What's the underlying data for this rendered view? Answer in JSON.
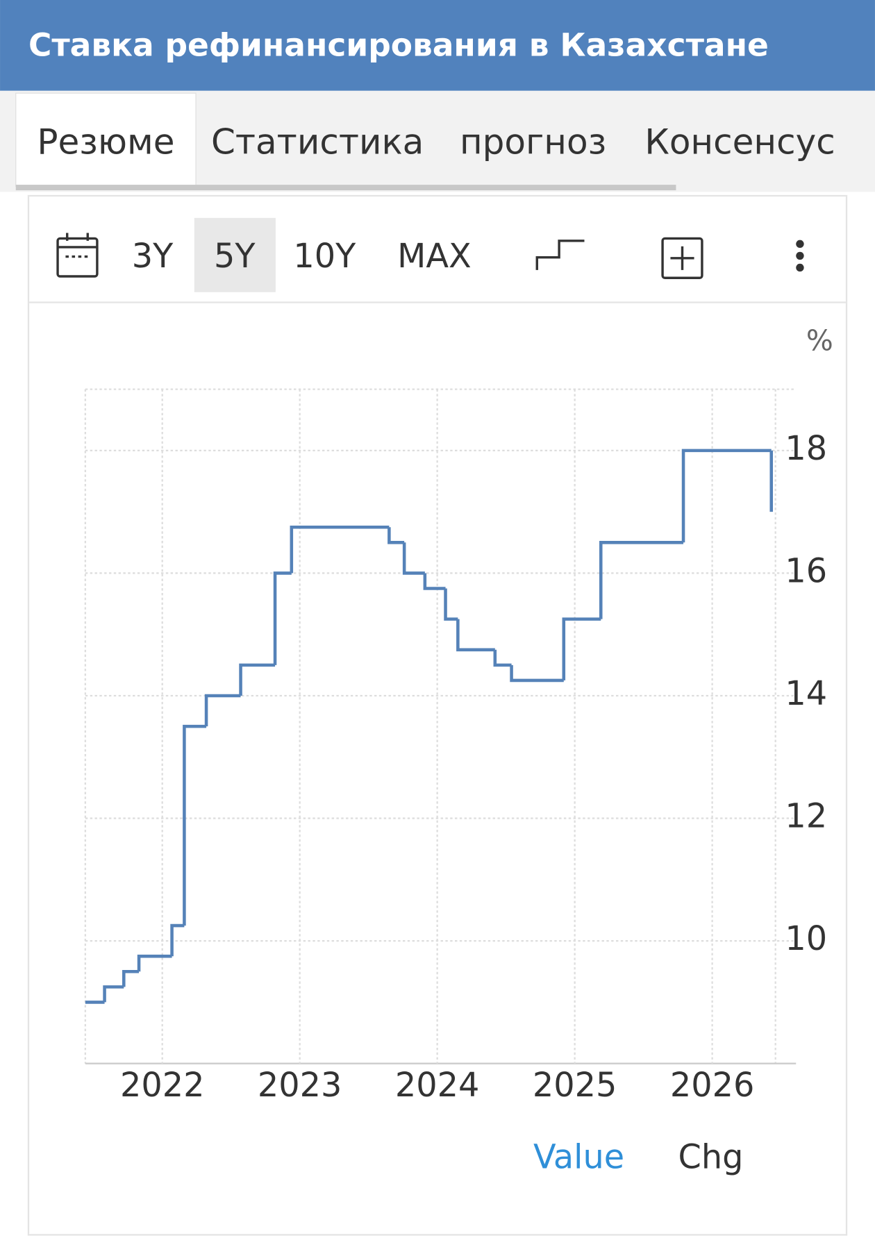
{
  "header": {
    "title": "Ставка рефинансирования в Казахстане"
  },
  "tabs": [
    "Резюме",
    "Статистика",
    "прогноз",
    "Консенсус"
  ],
  "toolbar": {
    "ranges": [
      "3Y",
      "5Y",
      "10Y",
      "MAX"
    ]
  },
  "toggles": [
    "Value",
    "Chg"
  ],
  "chart_data": {
    "type": "line",
    "step": "post",
    "unit": "%",
    "color": "#5582b8",
    "x": [
      2021.44,
      2021.58,
      2021.72,
      2021.83,
      2022.07,
      2022.16,
      2022.32,
      2022.57,
      2022.82,
      2022.94,
      2023.65,
      2023.76,
      2023.91,
      2024.06,
      2024.15,
      2024.42,
      2024.54,
      2024.92,
      2025.19,
      2025.79,
      2026.43
    ],
    "values": [
      9,
      9.25,
      9.5,
      9.75,
      10.25,
      13.5,
      14,
      14.5,
      16,
      16.75,
      16.5,
      16,
      15.75,
      15.25,
      14.75,
      14.5,
      14.25,
      15.25,
      16.5,
      18,
      17
    ],
    "xlim": [
      2021.44,
      2026.46
    ],
    "xticks": [
      2022,
      2023,
      2024,
      2025,
      2026
    ],
    "ylim": [
      8,
      19
    ],
    "yticks": [
      10,
      12,
      14,
      16,
      18
    ],
    "grid": true
  }
}
